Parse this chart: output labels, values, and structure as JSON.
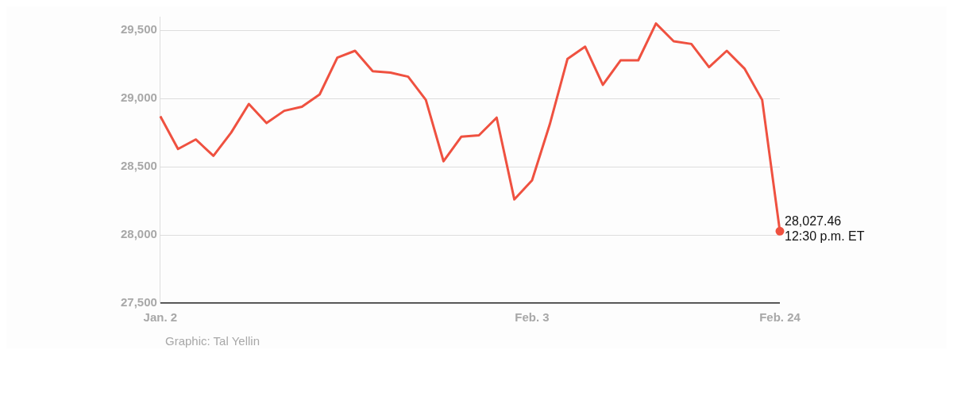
{
  "chart_data": {
    "type": "line",
    "categories": [
      "Jan. 2",
      null,
      null,
      null,
      null,
      null,
      null,
      null,
      null,
      null,
      null,
      null,
      null,
      null,
      null,
      null,
      null,
      null,
      null,
      null,
      null,
      "Feb. 3",
      null,
      null,
      null,
      null,
      null,
      null,
      null,
      null,
      null,
      null,
      null,
      null,
      null,
      "Feb. 24"
    ],
    "series": [
      {
        "color": "#ef5140",
        "values": [
          28870,
          28630,
          28700,
          28580,
          28750,
          28960,
          28820,
          28910,
          28940,
          29030,
          29300,
          29350,
          29200,
          29190,
          29160,
          28990,
          28540,
          28720,
          28730,
          28860,
          28260,
          28400,
          28810,
          29290,
          29380,
          29100,
          29280,
          29280,
          29550,
          29420,
          29400,
          29230,
          29350,
          29220,
          28990,
          28027.46
        ],
        "value_labels": [
          null,
          null,
          null,
          null,
          null,
          null,
          null,
          null,
          null,
          null,
          null,
          null,
          null,
          null,
          null,
          null,
          null,
          null,
          null,
          null,
          null,
          null,
          null,
          null,
          null,
          null,
          null,
          null,
          null,
          null,
          null,
          null,
          null,
          null,
          null,
          "28,027.46"
        ]
      }
    ],
    "ylim": [
      27500,
      29600
    ],
    "yticks": [
      {
        "value": 27500,
        "label": "27,500"
      },
      {
        "value": 28000,
        "label": "28,000"
      },
      {
        "value": 28500,
        "label": "28,500"
      },
      {
        "value": 29000,
        "label": "29,000"
      },
      {
        "value": 29500,
        "label": "29,500"
      }
    ],
    "grid": "y",
    "legend": false,
    "annotations": [
      {
        "text": "12:30 p.m. ET",
        "x": "Feb. 24",
        "y": 28027.46
      },
      "Graphic: Tal Yellin"
    ]
  }
}
